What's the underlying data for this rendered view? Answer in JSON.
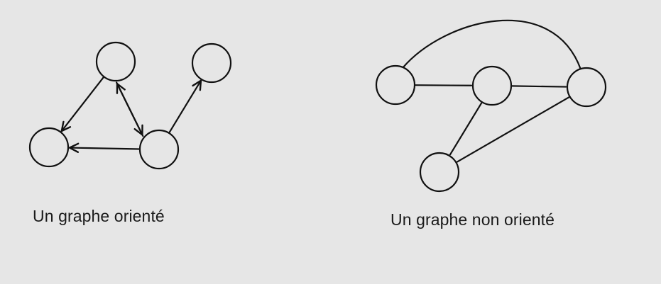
{
  "background_color": "#e6e6e6",
  "ink_color": "#111111",
  "graphs": [
    {
      "id": "directed",
      "caption": "Un graphe orienté",
      "directed": true,
      "nodes": [
        "a",
        "b",
        "c",
        "d"
      ],
      "edges": [
        {
          "from": "a",
          "to": "c",
          "arrow": "head"
        },
        {
          "from": "a",
          "to": "d",
          "arrow": "head"
        },
        {
          "from": "d",
          "to": "a",
          "arrow": "head"
        },
        {
          "from": "d",
          "to": "c",
          "arrow": "head"
        },
        {
          "from": "d",
          "to": "b",
          "arrow": "head"
        }
      ]
    },
    {
      "id": "undirected",
      "caption": "Un graphe non orienté",
      "directed": false,
      "nodes": [
        "p",
        "q",
        "r",
        "s"
      ],
      "edges": [
        {
          "from": "p",
          "to": "q"
        },
        {
          "from": "q",
          "to": "r"
        },
        {
          "from": "p",
          "to": "r",
          "curved": true
        },
        {
          "from": "q",
          "to": "s"
        },
        {
          "from": "r",
          "to": "s"
        }
      ]
    }
  ]
}
